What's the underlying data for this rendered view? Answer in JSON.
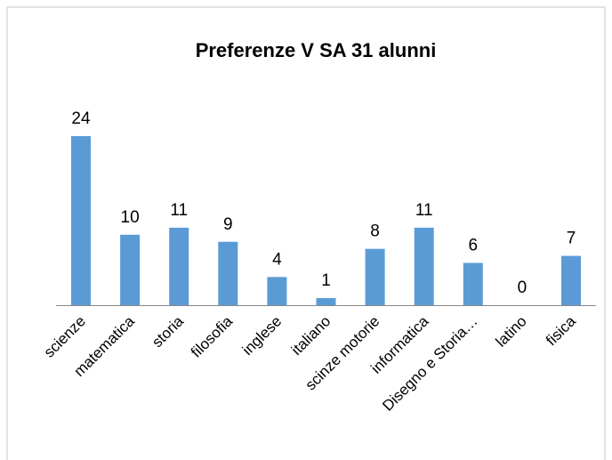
{
  "chart_data": {
    "type": "bar",
    "title": "Preferenze V SA  31 alunni",
    "categories": [
      "scienze",
      "matematica",
      "storia",
      "filosofia",
      "inglese",
      "italiano",
      "scinze motorie",
      "informatica",
      "Disegno e Storia…",
      "latino",
      "fisica"
    ],
    "values": [
      24,
      10,
      11,
      9,
      4,
      1,
      8,
      11,
      6,
      0,
      7
    ],
    "color": "#5b9bd5"
  }
}
